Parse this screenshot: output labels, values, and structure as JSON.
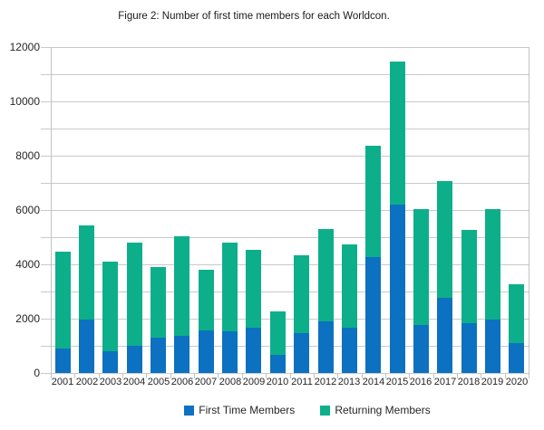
{
  "title": "Figure 2: Number of first time members for each Worldcon.",
  "chart_data": {
    "type": "bar",
    "stacked": true,
    "title": "Figure 2: Number of first time members for each Worldcon.",
    "categories": [
      "2001",
      "2002",
      "2003",
      "2004",
      "2005",
      "2006",
      "2007",
      "2008",
      "2009",
      "2010",
      "2011",
      "2012",
      "2013",
      "2014",
      "2015",
      "2016",
      "2017",
      "2018",
      "2019",
      "2020"
    ],
    "series": [
      {
        "name": "First Time Members",
        "color": "#0c71c0",
        "values": [
          900,
          1950,
          800,
          1000,
          1300,
          1380,
          1550,
          1520,
          1670,
          660,
          1450,
          1900,
          1660,
          4250,
          6200,
          1760,
          2780,
          1820,
          1950,
          1100
        ]
      },
      {
        "name": "Returning Members",
        "color": "#0daf8a",
        "values": [
          3550,
          3450,
          3300,
          3800,
          2600,
          3670,
          2230,
          3280,
          2880,
          1600,
          2870,
          3400,
          3070,
          4100,
          5280,
          4270,
          4310,
          3440,
          4050,
          2150
        ]
      }
    ],
    "stack_totals": [
      4450,
      5400,
      4100,
      4800,
      3900,
      5050,
      3780,
      4800,
      4550,
      2260,
      4320,
      5300,
      4730,
      8350,
      11480,
      6030,
      7090,
      5260,
      6000,
      3250
    ],
    "xlabel": "",
    "ylabel": "",
    "ylim": [
      0,
      12000
    ],
    "ytick_labels": [
      "0",
      "2000",
      "4000",
      "6000",
      "8000",
      "10000",
      "12000"
    ],
    "ytick_label_step": 2000,
    "grid": true,
    "grid_step": 1000,
    "legend_position": "bottom",
    "gridline_color": "#c9c9c9"
  }
}
